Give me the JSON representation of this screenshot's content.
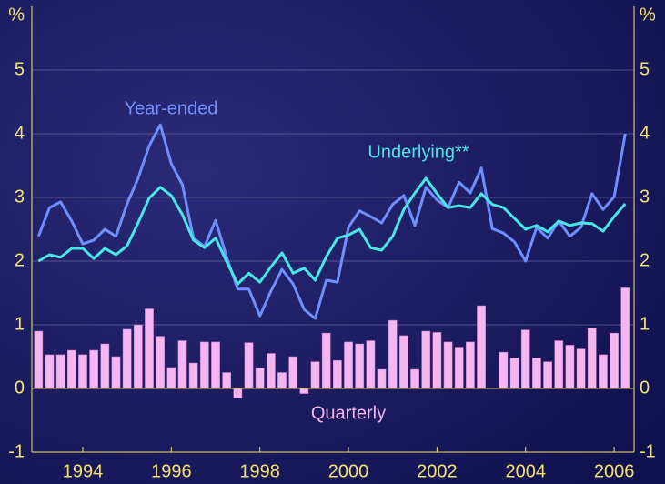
{
  "chart_data": {
    "type": "bar-line",
    "y_label": "%",
    "annotations": [
      "Year-ended",
      "Underlying**",
      "Quarterly"
    ],
    "x": [
      1993,
      1993.25,
      1993.5,
      1993.75,
      1994,
      1994.25,
      1994.5,
      1994.75,
      1995,
      1995.25,
      1995.5,
      1995.75,
      1996,
      1996.25,
      1996.5,
      1996.75,
      1997,
      1997.25,
      1997.5,
      1997.75,
      1998,
      1998.25,
      1998.5,
      1998.75,
      1999,
      1999.25,
      1999.5,
      1999.75,
      2000,
      2000.25,
      2000.5,
      2000.75,
      2001,
      2001.25,
      2001.5,
      2001.75,
      2002,
      2002.25,
      2002.5,
      2002.75,
      2003,
      2003.25,
      2003.5,
      2003.75,
      2004,
      2004.25,
      2004.5,
      2004.75,
      2005,
      2005.25,
      2005.5,
      2005.75,
      2006,
      2006.25
    ],
    "series": [
      {
        "name": "Quarterly",
        "type": "bar",
        "color": "#f4b6f0",
        "values": [
          0.9,
          0.53,
          0.53,
          0.6,
          0.53,
          0.6,
          0.7,
          0.5,
          0.93,
          1.0,
          1.25,
          0.82,
          0.33,
          0.75,
          0.4,
          0.73,
          0.73,
          0.25,
          -0.15,
          0.72,
          0.32,
          0.55,
          0.25,
          0.5,
          -0.08,
          0.42,
          0.87,
          0.44,
          0.73,
          0.7,
          0.75,
          0.3,
          1.07,
          0.83,
          0.3,
          0.9,
          0.88,
          0.73,
          0.65,
          0.73,
          1.3,
          0.0,
          0.57,
          0.48,
          0.92,
          0.48,
          0.42,
          0.75,
          0.68,
          0.62,
          0.95,
          0.53,
          0.87,
          1.58
        ]
      },
      {
        "name": "Year-ended",
        "type": "line",
        "color": "#6f8fff",
        "values": [
          2.39,
          2.84,
          2.93,
          2.63,
          2.27,
          2.33,
          2.5,
          2.39,
          2.9,
          3.3,
          3.81,
          4.14,
          3.53,
          3.2,
          2.36,
          2.23,
          2.64,
          2.06,
          1.56,
          1.56,
          1.14,
          1.53,
          1.87,
          1.64,
          1.24,
          1.1,
          1.7,
          1.67,
          2.53,
          2.79,
          2.7,
          2.6,
          2.89,
          3.03,
          2.56,
          3.16,
          2.96,
          2.84,
          3.24,
          3.07,
          3.46,
          2.51,
          2.44,
          2.3,
          2.0,
          2.53,
          2.36,
          2.63,
          2.39,
          2.53,
          3.06,
          2.81,
          3.01,
          4.0
        ]
      },
      {
        "name": "Underlying**",
        "type": "line",
        "color": "#48e6e6",
        "values": [
          2.0,
          2.1,
          2.06,
          2.2,
          2.2,
          2.04,
          2.2,
          2.1,
          2.24,
          2.6,
          2.99,
          3.16,
          3.03,
          2.73,
          2.33,
          2.21,
          2.36,
          1.99,
          1.64,
          1.81,
          1.67,
          1.91,
          2.13,
          1.81,
          1.89,
          1.7,
          2.07,
          2.36,
          2.41,
          2.5,
          2.21,
          2.17,
          2.39,
          2.81,
          3.07,
          3.3,
          3.06,
          2.84,
          2.87,
          2.84,
          3.06,
          2.89,
          2.84,
          2.67,
          2.5,
          2.56,
          2.46,
          2.63,
          2.56,
          2.6,
          2.59,
          2.47,
          2.7,
          2.9
        ]
      }
    ],
    "xlim": [
      1992.85,
      2006.45
    ],
    "xticks": [
      1994,
      1996,
      1998,
      2000,
      2002,
      2004,
      2006
    ],
    "ylim": [
      -1,
      6
    ],
    "yticks": [
      -1,
      0,
      1,
      2,
      3,
      4,
      5
    ],
    "grid": true
  }
}
